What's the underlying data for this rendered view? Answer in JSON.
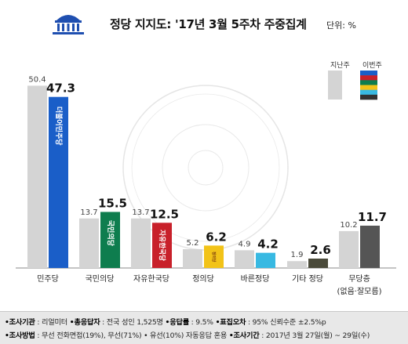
{
  "header": {
    "title": "정당 지지도: '17년 3월 5주차 주중집계",
    "unit": "단위: %"
  },
  "legend": {
    "prev": "지난주",
    "curr": "이번주"
  },
  "chart_data": {
    "type": "bar",
    "title": "정당 지지도: '17년 3월 5주차 주중집계",
    "ylim": [
      0,
      52
    ],
    "grid": false,
    "legend_position": "top-right",
    "categories": [
      "민주당",
      "국민의당",
      "자유한국당",
      "정의당",
      "바른정당",
      "기타 정당",
      "무당층"
    ],
    "category_sub": [
      "",
      "",
      "",
      "",
      "",
      "",
      "(없음·잘모름)"
    ],
    "series": [
      {
        "name": "지난주",
        "values": [
          50.4,
          13.7,
          13.7,
          5.2,
          4.9,
          1.9,
          10.2
        ],
        "labels": [
          "50.4",
          "13.7",
          "13.7",
          "5.2",
          "4.9",
          "1.9",
          "10.2"
        ]
      },
      {
        "name": "이번주",
        "values": [
          47.3,
          15.5,
          12.5,
          6.2,
          4.2,
          2.6,
          11.7
        ],
        "labels": [
          "47.3",
          "15.5",
          "12.5",
          "6.2",
          "4.2",
          "2.6",
          "11.7"
        ]
      }
    ],
    "party_logo_text": [
      "더불어민주당",
      "국민의당",
      "자유한국당",
      "정의당",
      "바른정당",
      "",
      ""
    ],
    "colors": {
      "prev": "#d4d4d4",
      "curr": [
        "#1a5ec8",
        "#0e7d4e",
        "#c8202a",
        "#f2c318",
        "#38b9e2",
        "#4a4a3a",
        "#555555"
      ],
      "legend_stripes": [
        "#1a5ec8",
        "#c8202a",
        "#0e7d4e",
        "#f2c318",
        "#38b9e2",
        "#333333"
      ]
    }
  },
  "footer": {
    "row1": [
      {
        "label": "•조사기관",
        "value": "리얼미터"
      },
      {
        "label": "•총응답자",
        "value": "전국 성인 1,525명"
      },
      {
        "label": "•응답률",
        "value": "9.5%"
      },
      {
        "label": "•표집오차",
        "value": "95% 신뢰수준 ±2.5%p"
      }
    ],
    "row2": [
      {
        "label": "•조사방법",
        "value": "무선 전화면접(19%), 무선(71%) • 유선(10%) 자동응답 혼용"
      },
      {
        "label": "•조사기간",
        "value": "2017년 3월 27일(월) ~ 29일(수)"
      }
    ]
  }
}
